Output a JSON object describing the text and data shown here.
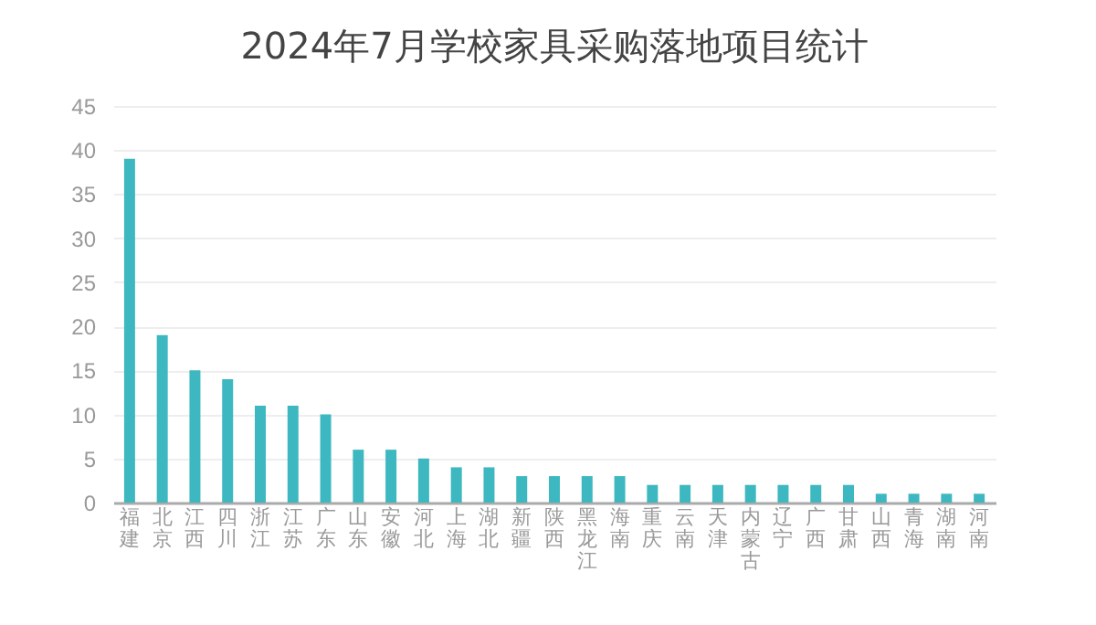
{
  "chart_data": {
    "type": "bar",
    "title": "2024年7月学校家具采购落地项目统计",
    "categories": [
      "福建",
      "北京",
      "江西",
      "四川",
      "浙江",
      "江苏",
      "广东",
      "山东",
      "安徽",
      "河北",
      "上海",
      "湖北",
      "新疆",
      "陕西",
      "黑龙江",
      "海南",
      "重庆",
      "云南",
      "天津",
      "内蒙古",
      "辽宁",
      "广西",
      "甘肃",
      "山西",
      "青海",
      "湖南",
      "河南"
    ],
    "values": [
      39,
      19,
      15,
      14,
      11,
      11,
      10,
      6,
      6,
      5,
      4,
      4,
      3,
      3,
      3,
      3,
      2,
      2,
      2,
      2,
      2,
      2,
      2,
      1,
      1,
      1,
      1
    ],
    "color": "#3db8c0",
    "ylim": [
      0,
      45
    ],
    "yticks": [
      0,
      5,
      10,
      15,
      20,
      25,
      30,
      35,
      40,
      45
    ],
    "grid": "y"
  }
}
